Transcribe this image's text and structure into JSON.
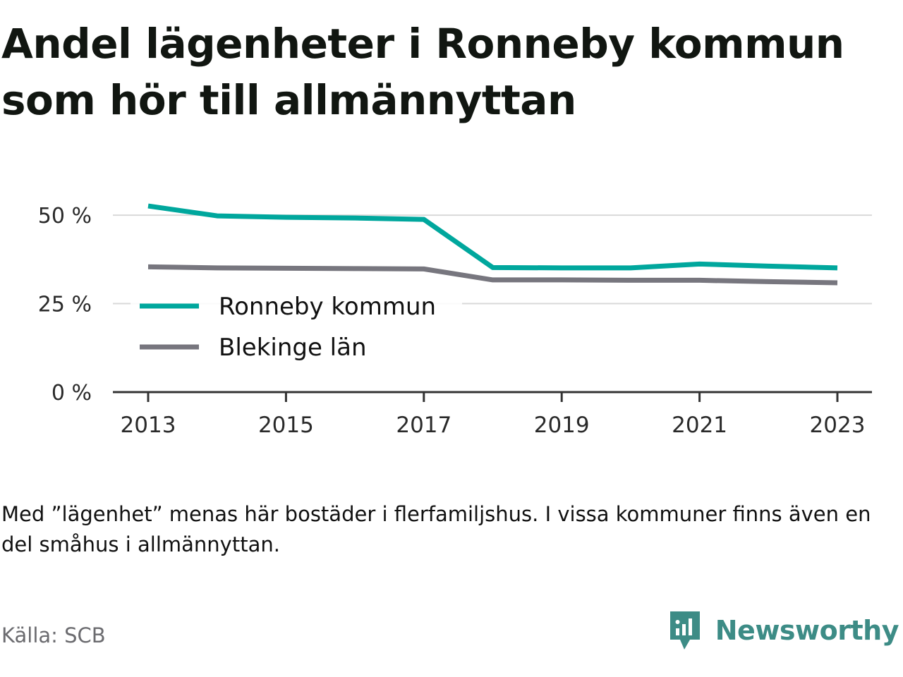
{
  "title": "Andel lägenheter i Ronneby kommun som hör till allmännyttan",
  "note": "Med ”lägenhet” menas här bostäder i flerfamiljshus. I vissa kommuner finns även en del småhus i allmännyttan.",
  "source": "Källa: SCB",
  "brand": {
    "name": "Newsworthy",
    "icon": "newsworthy-logo-icon",
    "color": "#3d8c86"
  },
  "chart_data": {
    "type": "line",
    "x": [
      2013,
      2014,
      2015,
      2016,
      2017,
      2018,
      2019,
      2020,
      2021,
      2022,
      2023
    ],
    "series": [
      {
        "name": "Ronneby kommun",
        "color": "#00a79d",
        "values": [
          52.6,
          49.8,
          49.4,
          49.2,
          48.8,
          35.2,
          35.1,
          35.1,
          36.2,
          35.6,
          35.1
        ]
      },
      {
        "name": "Blekinge län",
        "color": "#77767e",
        "values": [
          35.4,
          35.1,
          35.0,
          34.9,
          34.8,
          31.7,
          31.7,
          31.6,
          31.6,
          31.2,
          30.9
        ]
      }
    ],
    "yticks": [
      0,
      25,
      50
    ],
    "ytick_labels": [
      "0 %",
      "25 %",
      "50 %"
    ],
    "xticks": [
      2013,
      2015,
      2017,
      2019,
      2021,
      2023
    ],
    "xtick_labels": [
      "2013",
      "2015",
      "2017",
      "2019",
      "2021",
      "2023"
    ],
    "ylim": [
      0,
      55
    ],
    "grid": true,
    "legend_position": "center-left"
  }
}
